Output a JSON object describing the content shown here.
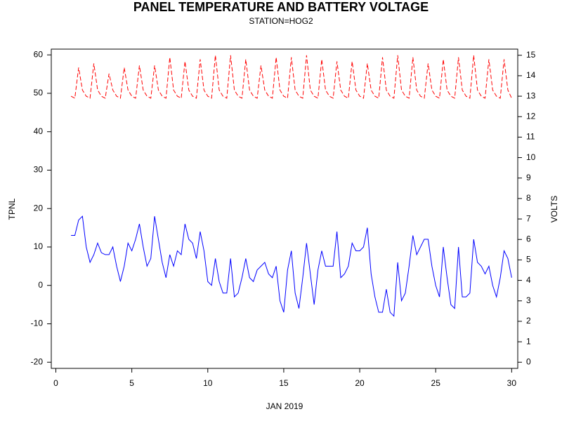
{
  "chart_data": {
    "type": "line",
    "title": "PANEL TEMPERATURE AND BATTERY VOLTAGE",
    "subtitle": "STATION=HOG2",
    "x_label": "JAN 2019",
    "y_label": "TPNL",
    "y2_label": "VOLTS",
    "x": [
      1,
      1.25,
      1.5,
      1.75,
      2,
      2.25,
      2.5,
      2.75,
      3,
      3.25,
      3.5,
      3.75,
      4,
      4.25,
      4.5,
      4.75,
      5,
      5.25,
      5.5,
      5.75,
      6,
      6.25,
      6.5,
      6.75,
      7,
      7.25,
      7.5,
      7.75,
      8,
      8.25,
      8.5,
      8.75,
      9,
      9.25,
      9.5,
      9.75,
      10,
      10.25,
      10.5,
      10.75,
      11,
      11.25,
      11.5,
      11.75,
      12,
      12.25,
      12.5,
      12.75,
      13,
      13.25,
      13.5,
      13.75,
      14,
      14.25,
      14.5,
      14.75,
      15,
      15.25,
      15.5,
      15.75,
      16,
      16.25,
      16.5,
      16.75,
      17,
      17.25,
      17.5,
      17.75,
      18,
      18.25,
      18.5,
      18.75,
      19,
      19.25,
      19.5,
      19.75,
      20,
      20.25,
      20.5,
      20.75,
      21,
      21.25,
      21.5,
      21.75,
      22,
      22.25,
      22.5,
      22.75,
      23,
      23.25,
      23.5,
      23.75,
      24,
      24.25,
      24.5,
      24.75,
      25,
      25.25,
      25.5,
      25.75,
      26,
      26.25,
      26.5,
      26.75,
      27,
      27.25,
      27.5,
      27.75,
      28,
      28.25,
      28.5,
      28.75,
      29,
      29.25,
      29.5,
      29.75,
      30
    ],
    "series": [
      {
        "color": "#0000ff",
        "line_style": "solid",
        "axis": "y",
        "values": [
          13,
          13,
          17,
          18,
          10,
          6,
          8,
          11,
          8.5,
          8,
          8,
          10,
          5,
          1,
          5,
          11,
          9,
          12,
          16,
          10,
          5,
          7,
          18,
          12,
          6,
          2,
          8,
          5,
          9,
          8,
          16,
          12,
          11,
          7,
          14,
          9,
          1,
          0,
          7,
          1,
          -2,
          -2,
          7,
          -3,
          -2,
          2,
          7,
          2,
          1,
          4,
          5,
          6,
          3,
          2,
          5,
          -4,
          -7,
          4,
          9,
          -2,
          -6,
          2,
          11,
          3,
          -5,
          4,
          9,
          5,
          5,
          5,
          14,
          2,
          3,
          5,
          11,
          9,
          9,
          10,
          15,
          3,
          -3,
          -7,
          -7,
          -1,
          -7,
          -8,
          6,
          -4,
          -2,
          5,
          13,
          8,
          10,
          12,
          12,
          5,
          0,
          -3,
          10,
          2,
          -5,
          -6,
          10,
          -3,
          -3,
          -2,
          12,
          6,
          5,
          3,
          5,
          0,
          -3,
          2,
          9,
          7,
          2
        ]
      },
      {
        "color": "#ff0000",
        "line_style": "dashed",
        "axis": "y2",
        "values": [
          13,
          12.9,
          14.4,
          13.3,
          13,
          12.9,
          14.6,
          13.3,
          13,
          12.9,
          14.1,
          13.3,
          13,
          12.9,
          14.4,
          13.3,
          13,
          12.9,
          14.5,
          13.3,
          13,
          12.9,
          14.5,
          13.3,
          13,
          12.9,
          14.9,
          13.3,
          13,
          12.9,
          14.7,
          13.3,
          13,
          12.9,
          14.8,
          13.3,
          13,
          12.9,
          15,
          13.3,
          13,
          12.9,
          15,
          13.3,
          13,
          12.9,
          14.8,
          13.3,
          13,
          12.9,
          14.5,
          13.3,
          13,
          12.9,
          14.9,
          13.3,
          13,
          12.9,
          14.9,
          13.3,
          13,
          12.9,
          15,
          13.3,
          13,
          12.9,
          14.8,
          13.3,
          13,
          12.9,
          14.7,
          13.3,
          13,
          12.9,
          14.7,
          13.3,
          13,
          12.9,
          14.6,
          13.3,
          13,
          12.9,
          14.9,
          13.3,
          13,
          12.9,
          15,
          13.3,
          13,
          12.9,
          14.9,
          13.3,
          13,
          12.9,
          14.6,
          13.3,
          13,
          12.9,
          14.8,
          13.3,
          13,
          12.9,
          14.9,
          13.3,
          13,
          12.9,
          15,
          13.3,
          13,
          12.9,
          14.8,
          13.3,
          13,
          12.9,
          14.8,
          13.3,
          12.9
        ]
      }
    ],
    "xlim": [
      -0.3,
      30.4
    ],
    "xticks": [
      0,
      5,
      10,
      15,
      20,
      25,
      30
    ],
    "ylim": [
      -21.6,
      61.5
    ],
    "yticks": [
      -20,
      -10,
      0,
      10,
      20,
      30,
      40,
      50,
      60
    ],
    "y2lim": [
      -0.3,
      15.3
    ],
    "y2ticks": [
      0,
      1,
      2,
      3,
      4,
      5,
      6,
      7,
      8,
      9,
      10,
      11,
      12,
      13,
      14,
      15
    ]
  }
}
